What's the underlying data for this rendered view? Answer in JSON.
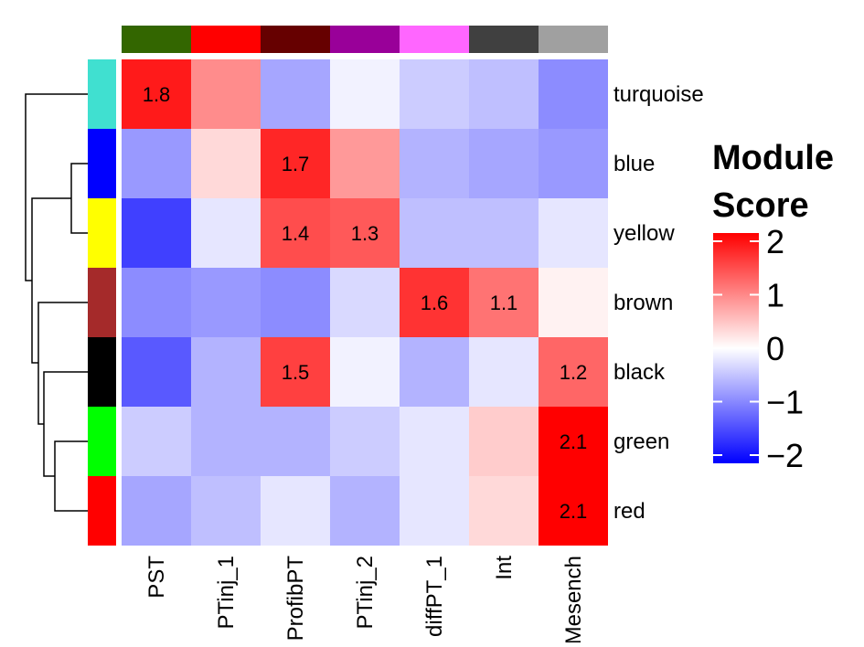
{
  "chart_data": {
    "type": "heatmap",
    "rows": [
      "turquoise",
      "blue",
      "yellow",
      "brown",
      "black",
      "green",
      "red"
    ],
    "row_colors": [
      "#40e0d0",
      "#0000ff",
      "#ffff00",
      "#a52a2a",
      "#000000",
      "#00ff00",
      "#ff0000"
    ],
    "columns": [
      "PST",
      "PTinj_1",
      "ProfibPT",
      "PTinj_2",
      "diffPT_1",
      "Int",
      "Mesench"
    ],
    "column_colors": [
      "#336600",
      "#ff0000",
      "#660000",
      "#990099",
      "#ff66ff",
      "#404040",
      "#a0a0a0"
    ],
    "values": [
      [
        1.8,
        0.9,
        -0.7,
        -0.1,
        -0.4,
        -0.5,
        -0.9
      ],
      [
        -0.8,
        0.3,
        1.7,
        0.8,
        -0.6,
        -0.7,
        -0.8
      ],
      [
        -1.5,
        -0.2,
        1.4,
        1.3,
        -0.5,
        -0.5,
        -0.2
      ],
      [
        -0.9,
        -0.8,
        -0.9,
        -0.3,
        1.6,
        1.1,
        0.1
      ],
      [
        -1.3,
        -0.6,
        1.5,
        -0.1,
        -0.6,
        -0.2,
        1.2
      ],
      [
        -0.4,
        -0.6,
        -0.6,
        -0.4,
        -0.2,
        0.4,
        2.1
      ],
      [
        -0.7,
        -0.5,
        -0.2,
        -0.6,
        -0.2,
        0.3,
        2.1
      ]
    ],
    "value_labels": [
      [
        "1.8",
        null,
        null,
        null,
        null,
        null,
        null
      ],
      [
        null,
        null,
        "1.7",
        null,
        null,
        null,
        null
      ],
      [
        null,
        null,
        "1.4",
        "1.3",
        null,
        null,
        null
      ],
      [
        null,
        null,
        null,
        null,
        "1.6",
        "1.1",
        null
      ],
      [
        null,
        null,
        "1.5",
        null,
        null,
        null,
        "1.2"
      ],
      [
        null,
        null,
        null,
        null,
        null,
        null,
        "2.1"
      ],
      [
        null,
        null,
        null,
        null,
        null,
        null,
        "2.1"
      ]
    ],
    "legend_title": [
      "Module",
      "Score"
    ],
    "colors": [
      "#0000ff",
      "#ffffff",
      "#ff0000"
    ],
    "zlim": [
      -2,
      2
    ],
    "zticks": [
      2,
      1,
      0,
      {
        "value": -1,
        "label": "−1"
      },
      {
        "value": -2,
        "label": "−2"
      }
    ]
  }
}
